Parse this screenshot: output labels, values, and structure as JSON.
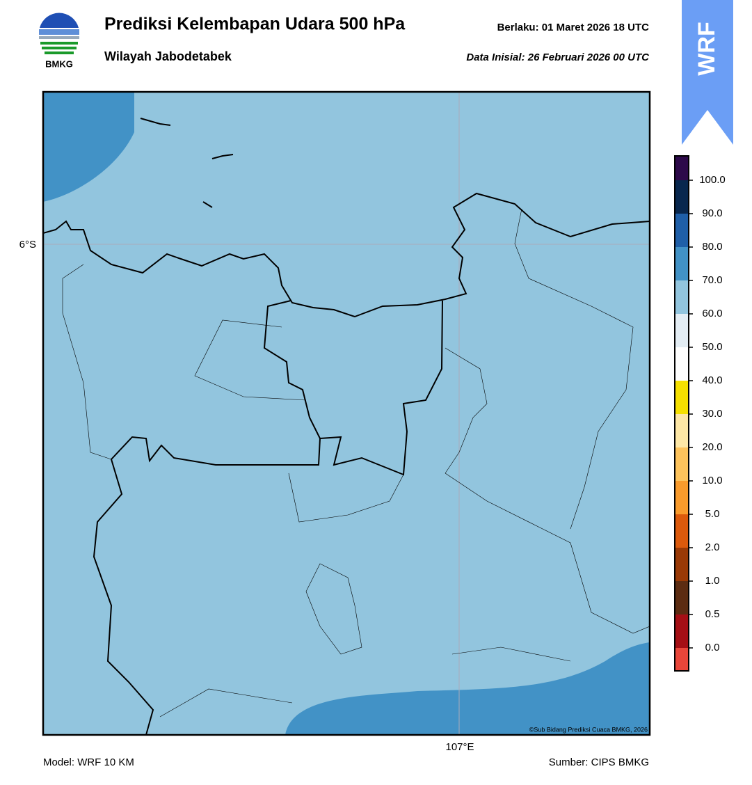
{
  "header": {
    "title": "Prediksi Kelembapan Udara 500 hPa",
    "subtitle": "Wilayah Jabodetabek",
    "valid": "Berlaku:  01 Maret 2026 18 UTC",
    "init": "Data Inisial:  26 Februari 2026 00 UTC",
    "logo_text": "BMKG",
    "badge": "WRF"
  },
  "map": {
    "lat_label": "6°S",
    "lon_label": "107°E",
    "copyright": "©Sub Bidang Prediksi Cuaca BMKG, 2026"
  },
  "colorbar": {
    "labels": [
      "100.0",
      "90.0",
      "80.0",
      "70.0",
      "60.0",
      "50.0",
      "40.0",
      "30.0",
      "20.0",
      "10.0",
      "5.0",
      "2.0",
      "1.0",
      "0.5",
      "0.0"
    ],
    "colors": [
      "#2d0a4a",
      "#08274e",
      "#1f5fa8",
      "#4292c6",
      "#92c5de",
      "#e3edf4",
      "#ffffff",
      "#f5e000",
      "#fde7a6",
      "#fdc35c",
      "#f99b2c",
      "#dc5a0c",
      "#9a3a06",
      "#5c2c12",
      "#a50f15",
      "#e8463a"
    ]
  },
  "footer": {
    "model": "Model: WRF 10 KM",
    "source": "Sumber: CIPS BMKG"
  }
}
